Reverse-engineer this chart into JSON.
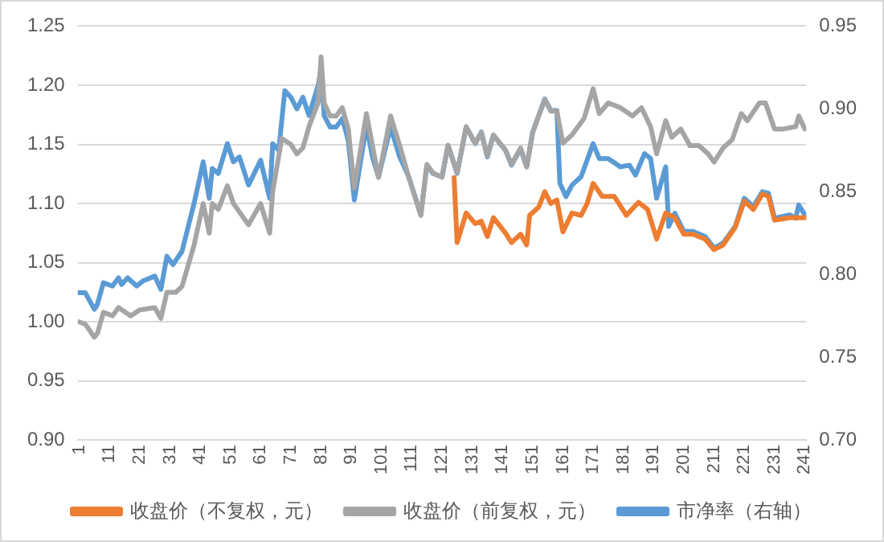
{
  "chart_data": {
    "type": "line",
    "xlim": [
      0.5,
      241.5
    ],
    "xticks": [
      1,
      11,
      21,
      31,
      41,
      51,
      61,
      71,
      81,
      91,
      101,
      111,
      121,
      131,
      141,
      151,
      161,
      171,
      181,
      191,
      201,
      211,
      221,
      231,
      241
    ],
    "ylim": [
      0.9,
      1.25
    ],
    "yticks": [
      {
        "value": 0.9,
        "label": "0.90"
      },
      0.95,
      {
        "value": 1,
        "label": "1.00"
      },
      1.05,
      {
        "value": 1.1,
        "label": "1.10"
      },
      1.15,
      {
        "value": 1.2,
        "label": "1.20"
      },
      1.25
    ],
    "y2lim": [
      0.7,
      0.95
    ],
    "y2ticks": [
      {
        "value": 0.7,
        "label": "0.70"
      },
      0.75,
      {
        "value": 0.8,
        "label": "0.80"
      },
      0.85,
      {
        "value": 0.9,
        "label": "0.90"
      },
      0.95
    ],
    "grid": "y",
    "legend": "bottom",
    "marker": "none",
    "line_style": "solid",
    "series": [
      {
        "name": "收盘价（不复权，元）",
        "color": "#ed7d31",
        "x": [
          125,
          126,
          129,
          132,
          134,
          136,
          138,
          142,
          144,
          147,
          149,
          150,
          153,
          155,
          157,
          159,
          161,
          164,
          167,
          169,
          171,
          174,
          178,
          182,
          186,
          189,
          192,
          195,
          198,
          201,
          204,
          208,
          211,
          214,
          218,
          221,
          224,
          227,
          229,
          231,
          236,
          241
        ],
        "values": [
          1.122,
          1.067,
          1.092,
          1.083,
          1.085,
          1.072,
          1.088,
          1.075,
          1.067,
          1.074,
          1.065,
          1.09,
          1.097,
          1.11,
          1.1,
          1.103,
          1.076,
          1.092,
          1.09,
          1.1,
          1.117,
          1.106,
          1.106,
          1.09,
          1.101,
          1.095,
          1.07,
          1.092,
          1.088,
          1.074,
          1.074,
          1.07,
          1.061,
          1.065,
          1.08,
          1.102,
          1.095,
          1.108,
          1.106,
          1.086,
          1.088,
          1.088
        ]
      },
      {
        "name": "收盘价（前复权，元）",
        "color": "#a5a5a5",
        "x": [
          1,
          3,
          6,
          7,
          9,
          12,
          14,
          18,
          21,
          26,
          28,
          30,
          33,
          35,
          39,
          42,
          44,
          45,
          47,
          50,
          52,
          57,
          61,
          64,
          65,
          68,
          71,
          73,
          75,
          77,
          80,
          81,
          82,
          84,
          86,
          88,
          90,
          92,
          96,
          98,
          100,
          104,
          107,
          110,
          114,
          116,
          118,
          121,
          123,
          126,
          129,
          132,
          134,
          136,
          138,
          142,
          144,
          147,
          149,
          151,
          155,
          157,
          159,
          161,
          164,
          166,
          168,
          171,
          173,
          176,
          180,
          184,
          187,
          190,
          192,
          195,
          197,
          200,
          203,
          206,
          209,
          211,
          214,
          217,
          220,
          222,
          226,
          228,
          231,
          234,
          238,
          239,
          241
        ],
        "values": [
          1.0,
          0.998,
          0.987,
          0.99,
          1.008,
          1.005,
          1.012,
          1.005,
          1.01,
          1.012,
          1.003,
          1.025,
          1.025,
          1.03,
          1.065,
          1.1,
          1.075,
          1.1,
          1.095,
          1.115,
          1.1,
          1.082,
          1.1,
          1.075,
          1.11,
          1.155,
          1.15,
          1.142,
          1.147,
          1.165,
          1.185,
          1.224,
          1.185,
          1.174,
          1.174,
          1.181,
          1.163,
          1.113,
          1.176,
          1.149,
          1.122,
          1.174,
          1.149,
          1.122,
          1.09,
          1.133,
          1.126,
          1.122,
          1.149,
          1.126,
          1.165,
          1.151,
          1.16,
          1.14,
          1.158,
          1.145,
          1.133,
          1.147,
          1.131,
          1.16,
          1.188,
          1.178,
          1.178,
          1.151,
          1.158,
          1.165,
          1.172,
          1.197,
          1.176,
          1.185,
          1.181,
          1.174,
          1.181,
          1.165,
          1.142,
          1.17,
          1.156,
          1.163,
          1.149,
          1.149,
          1.142,
          1.135,
          1.147,
          1.154,
          1.176,
          1.17,
          1.185,
          1.185,
          1.163,
          1.163,
          1.165,
          1.174,
          1.163
        ]
      },
      {
        "name": "市净率（右轴）",
        "color": "#5b9bd5",
        "axis": "y2",
        "x": [
          1,
          3,
          6,
          7,
          9,
          12,
          14,
          15,
          17,
          20,
          22,
          26,
          28,
          30,
          32,
          35,
          39,
          42,
          44,
          45,
          47,
          50,
          52,
          54,
          57,
          61,
          64,
          65,
          67,
          69,
          71,
          73,
          75,
          77,
          80,
          81,
          82,
          84,
          86,
          88,
          90,
          92,
          96,
          98,
          100,
          104,
          107,
          110,
          114,
          116,
          118,
          121,
          123,
          126,
          129,
          132,
          134,
          136,
          138,
          142,
          144,
          147,
          149,
          151,
          155,
          157,
          159,
          160,
          162,
          164,
          167,
          171,
          173,
          176,
          180,
          183,
          185,
          188,
          190,
          192,
          195,
          196,
          198,
          201,
          204,
          208,
          211,
          214,
          218,
          221,
          224,
          227,
          229,
          231,
          236,
          238,
          239,
          241
        ],
        "values": [
          0.789,
          0.789,
          0.779,
          0.782,
          0.795,
          0.793,
          0.798,
          0.794,
          0.798,
          0.793,
          0.796,
          0.799,
          0.791,
          0.811,
          0.806,
          0.814,
          0.843,
          0.868,
          0.846,
          0.864,
          0.861,
          0.879,
          0.868,
          0.871,
          0.854,
          0.869,
          0.846,
          0.879,
          0.875,
          0.911,
          0.907,
          0.9,
          0.907,
          0.896,
          0.914,
          0.924,
          0.896,
          0.889,
          0.889,
          0.894,
          0.881,
          0.845,
          0.89,
          0.871,
          0.859,
          0.889,
          0.871,
          0.859,
          0.836,
          0.866,
          0.861,
          0.859,
          0.878,
          0.861,
          0.889,
          0.879,
          0.886,
          0.871,
          0.884,
          0.875,
          0.866,
          0.876,
          0.865,
          0.886,
          0.906,
          0.899,
          0.899,
          0.855,
          0.847,
          0.854,
          0.859,
          0.879,
          0.87,
          0.87,
          0.865,
          0.866,
          0.86,
          0.873,
          0.87,
          0.846,
          0.865,
          0.829,
          0.837,
          0.826,
          0.826,
          0.823,
          0.816,
          0.819,
          0.829,
          0.846,
          0.841,
          0.85,
          0.849,
          0.834,
          0.836,
          0.834,
          0.842,
          0.836
        ]
      }
    ]
  }
}
